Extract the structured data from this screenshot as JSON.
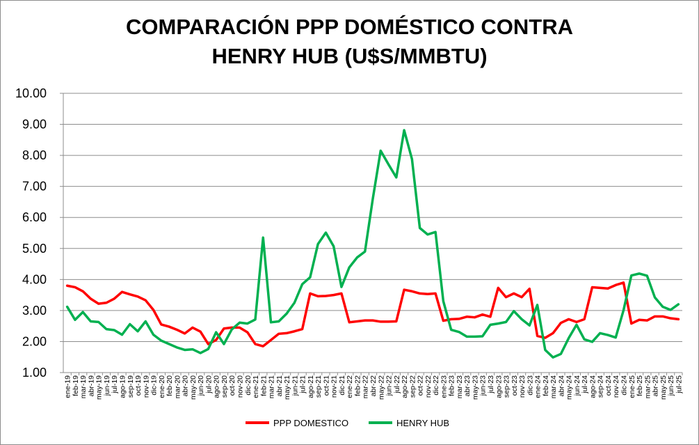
{
  "chart_data": {
    "type": "line",
    "title_line1": "COMPARACIÓN PPP DOMÉSTICO CONTRA",
    "title_line2": "HENRY HUB (U$S/MMBTU)",
    "xlabel": "",
    "ylabel": "",
    "ylim": [
      1.0,
      10.0
    ],
    "yticks": [
      "1.00",
      "2.00",
      "3.00",
      "4.00",
      "5.00",
      "6.00",
      "7.00",
      "8.00",
      "9.00",
      "10.00"
    ],
    "grid": true,
    "legend_position": "bottom",
    "categories": [
      "ene-19",
      "feb-19",
      "mar-19",
      "abr-19",
      "may-19",
      "jun-19",
      "jul-19",
      "ago-19",
      "sep-19",
      "oct-19",
      "nov-19",
      "dic-19",
      "ene-20",
      "feb-20",
      "mar-20",
      "abr-20",
      "may-20",
      "jun-20",
      "jul-20",
      "ago-20",
      "sep-20",
      "oct-20",
      "nov-20",
      "dic-20",
      "ene-21",
      "feb-21",
      "mar-21",
      "abr-21",
      "may-21",
      "jun-21",
      "jul-21",
      "ago-21",
      "sep-21",
      "oct-21",
      "nov-21",
      "dic-21",
      "ene-22",
      "feb-22",
      "mar-22",
      "abr-22",
      "may-22",
      "jun-22",
      "jul-22",
      "ago-22",
      "sep-22",
      "oct-22",
      "nov-22",
      "dic-22",
      "ene-23",
      "feb-23",
      "mar-23",
      "abr-23",
      "may-23",
      "jun-23",
      "jul-23",
      "ago-23",
      "sep-23",
      "oct-23",
      "nov-23",
      "dic-23",
      "ene-24",
      "feb-24",
      "mar-24",
      "abr-24",
      "may-24",
      "jun-24",
      "jul-24",
      "ago-24",
      "sep-24",
      "oct-24",
      "nov-24",
      "dic-24",
      "ene-25",
      "feb-25",
      "mar-25",
      "abr-25",
      "may-25",
      "jun-25",
      "jul-25"
    ],
    "series": [
      {
        "name": "PPP DOMESTICO",
        "color": "#ff0000",
        "values": [
          3.8,
          3.75,
          3.62,
          3.38,
          3.22,
          3.25,
          3.38,
          3.6,
          3.52,
          3.45,
          3.33,
          3.02,
          2.55,
          2.48,
          2.38,
          2.26,
          2.45,
          2.32,
          1.92,
          2.05,
          2.42,
          2.45,
          2.45,
          2.3,
          1.92,
          1.85,
          2.05,
          2.25,
          2.27,
          2.33,
          2.4,
          3.55,
          3.46,
          3.47,
          3.5,
          3.55,
          2.62,
          2.65,
          2.68,
          2.68,
          2.64,
          2.64,
          2.65,
          3.67,
          3.62,
          3.55,
          3.53,
          3.55,
          2.67,
          2.72,
          2.73,
          2.8,
          2.78,
          2.87,
          2.8,
          3.73,
          3.43,
          3.55,
          3.43,
          3.7,
          2.18,
          2.12,
          2.27,
          2.6,
          2.72,
          2.63,
          2.72,
          3.75,
          3.73,
          3.71,
          3.82,
          3.9,
          2.58,
          2.7,
          2.68,
          2.81,
          2.81,
          2.75,
          2.72
        ]
      },
      {
        "name": "HENRY HUB",
        "color": "#00b050",
        "values": [
          3.12,
          2.7,
          2.95,
          2.65,
          2.63,
          2.4,
          2.37,
          2.22,
          2.56,
          2.33,
          2.65,
          2.22,
          2.03,
          1.92,
          1.81,
          1.73,
          1.75,
          1.63,
          1.76,
          2.3,
          1.92,
          2.39,
          2.61,
          2.58,
          2.71,
          5.35,
          2.62,
          2.65,
          2.9,
          3.25,
          3.85,
          4.07,
          5.14,
          5.51,
          5.07,
          3.76,
          4.39,
          4.71,
          4.9,
          6.6,
          8.15,
          7.71,
          7.29,
          8.81,
          7.88,
          5.66,
          5.45,
          5.53,
          3.3,
          2.38,
          2.31,
          2.16,
          2.16,
          2.17,
          2.54,
          2.58,
          2.63,
          2.98,
          2.72,
          2.52,
          3.18,
          1.73,
          1.49,
          1.6,
          2.11,
          2.54,
          2.07,
          1.99,
          2.27,
          2.21,
          2.13,
          3.01,
          4.13,
          4.19,
          4.12,
          3.42,
          3.12,
          3.02,
          3.2
        ]
      }
    ]
  }
}
